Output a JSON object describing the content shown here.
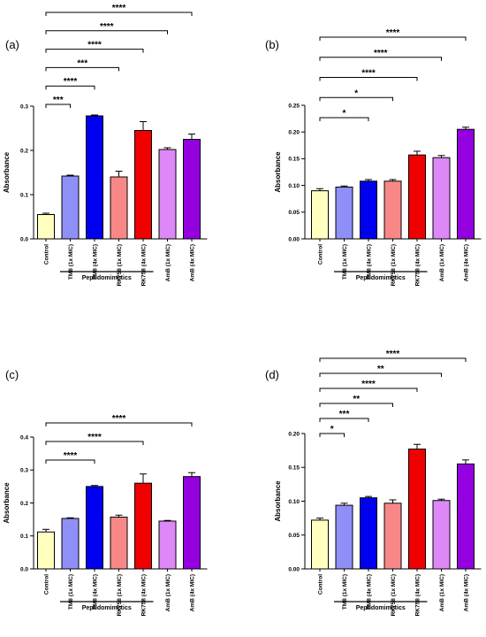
{
  "figure": {
    "group_label": "Peptidomimetics"
  },
  "colors": {
    "Control": "#ffffc0",
    "TM8 (1x MIC)": "#8f8ff8",
    "TM8 (4x MIC)": "#0000f0",
    "RK758 (1x MIC)": "#f88888",
    "RK758 (4x MIC)": "#f00000",
    "AmB (1x MIC)": "#de88f8",
    "AmB (4x MIC)": "#9400e0"
  },
  "chart_data": [
    {
      "panel": "(a)",
      "type": "bar",
      "ylabel": "Absorbance",
      "ylim": [
        0,
        0.3
      ],
      "yticks": [
        "0.0",
        "0.1",
        "0.2",
        "0.3"
      ],
      "categories": [
        "Control",
        "TM8 (1x MIC)",
        "TM8 (4x MIC)",
        "RK758 (1x MIC)",
        "RK758 (4x MIC)",
        "AmB (1x MIC)",
        "AmB (4x MIC)"
      ],
      "values": [
        0.055,
        0.142,
        0.278,
        0.14,
        0.245,
        0.202,
        0.225
      ],
      "errors": [
        0.003,
        0.002,
        0.002,
        0.013,
        0.02,
        0.004,
        0.012
      ],
      "group": {
        "label": "Peptidomimetics",
        "from": 1,
        "to": 4
      },
      "significance": [
        {
          "to": 1,
          "label": "***"
        },
        {
          "to": 2,
          "label": "****"
        },
        {
          "to": 3,
          "label": "***"
        },
        {
          "to": 4,
          "label": "****"
        },
        {
          "to": 5,
          "label": "****"
        },
        {
          "to": 6,
          "label": "****"
        }
      ]
    },
    {
      "panel": "(b)",
      "type": "bar",
      "ylabel": "Absorbance",
      "ylim": [
        0,
        0.25
      ],
      "yticks": [
        "0.00",
        "0.05",
        "0.10",
        "0.15",
        "0.20",
        "0.25"
      ],
      "categories": [
        "Control",
        "TM8 (1x MIC)",
        "TM8 (4x MIC)",
        "RK758 (1x MIC)",
        "RK758 (4x MIC)",
        "AmB (1x MIC)",
        "AmB (4x MIC)"
      ],
      "values": [
        0.09,
        0.097,
        0.108,
        0.108,
        0.157,
        0.152,
        0.205
      ],
      "errors": [
        0.004,
        0.002,
        0.003,
        0.003,
        0.007,
        0.004,
        0.004
      ],
      "group": {
        "label": "Peptidomimetics",
        "from": 1,
        "to": 4
      },
      "significance": [
        {
          "to": 2,
          "label": "*"
        },
        {
          "to": 3,
          "label": "*"
        },
        {
          "to": 4,
          "label": "****"
        },
        {
          "to": 5,
          "label": "****"
        },
        {
          "to": 6,
          "label": "****"
        }
      ]
    },
    {
      "panel": "(c)",
      "type": "bar",
      "ylabel": "Absorbance",
      "ylim": [
        0,
        0.4
      ],
      "yticks": [
        "0.0",
        "0.1",
        "0.2",
        "0.3",
        "0.4"
      ],
      "categories": [
        "Control",
        "TM8 (1x MIC)",
        "TM8 (4x MIC)",
        "RK758 (1x MIC)",
        "RK758 (4x MIC)",
        "AmB (1x MIC)",
        "AmB (4x MIC)"
      ],
      "values": [
        0.112,
        0.153,
        0.25,
        0.157,
        0.26,
        0.145,
        0.28
      ],
      "errors": [
        0.008,
        0.002,
        0.003,
        0.006,
        0.028,
        0.002,
        0.012
      ],
      "group": {
        "label": "Peptidomimetics",
        "from": 1,
        "to": 4
      },
      "significance": [
        {
          "to": 2,
          "label": "****"
        },
        {
          "to": 4,
          "label": "****"
        },
        {
          "to": 6,
          "label": "****"
        }
      ]
    },
    {
      "panel": "(d)",
      "type": "bar",
      "ylabel": "Absorbance",
      "ylim": [
        0,
        0.2
      ],
      "yticks": [
        "0.00",
        "0.05",
        "0.10",
        "0.15",
        "0.20"
      ],
      "categories": [
        "Control",
        "TM8 (1x MIC)",
        "TM8 (4x MIC)",
        "RK758 (1x MIC)",
        "RK758 (4x MIC)",
        "AmB (1x MIC)",
        "AmB (4x MIC)"
      ],
      "values": [
        0.072,
        0.094,
        0.105,
        0.097,
        0.177,
        0.101,
        0.155
      ],
      "errors": [
        0.003,
        0.003,
        0.002,
        0.005,
        0.007,
        0.002,
        0.006
      ],
      "group": {
        "label": "Peptidomimetics",
        "from": 1,
        "to": 4
      },
      "significance": [
        {
          "to": 1,
          "label": "*"
        },
        {
          "to": 2,
          "label": "***"
        },
        {
          "to": 3,
          "label": "**"
        },
        {
          "to": 4,
          "label": "****"
        },
        {
          "to": 5,
          "label": "**"
        },
        {
          "to": 6,
          "label": "****"
        }
      ]
    }
  ]
}
